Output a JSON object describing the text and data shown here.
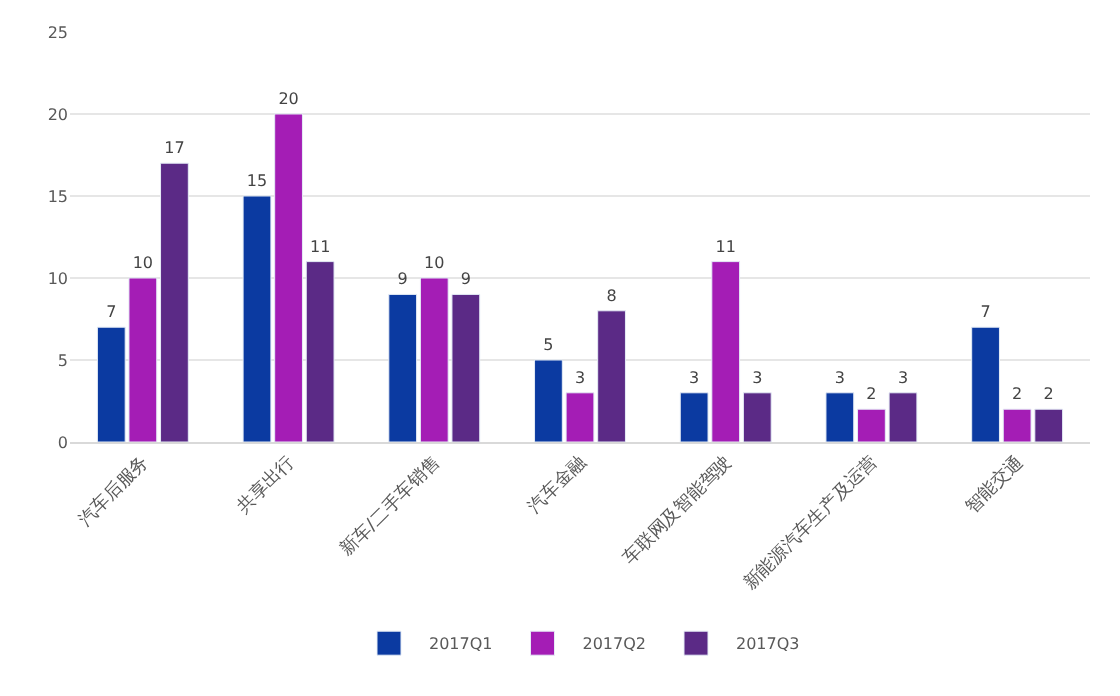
{
  "chart_data": {
    "type": "bar",
    "categories": [
      "汽车后服务",
      "共享出行",
      "新车/二手车销售",
      "汽车金融",
      "车联网及智能驾驶",
      "新能源汽车生产及运营",
      "智能交通"
    ],
    "series": [
      {
        "name": "2017Q1",
        "color": "#0b3aa1",
        "values": [
          7,
          15,
          9,
          5,
          3,
          3,
          7
        ]
      },
      {
        "name": "2017Q2",
        "color": "#a41db5",
        "values": [
          10,
          20,
          10,
          3,
          11,
          2,
          2
        ]
      },
      {
        "name": "2017Q3",
        "color": "#5b2a86",
        "values": [
          17,
          11,
          9,
          8,
          3,
          3,
          2
        ]
      }
    ],
    "ylim": [
      0,
      25
    ],
    "yticks": [
      0,
      5,
      10,
      15,
      20,
      25
    ],
    "grid": "y",
    "legend": "bottom",
    "data_labels": true
  }
}
